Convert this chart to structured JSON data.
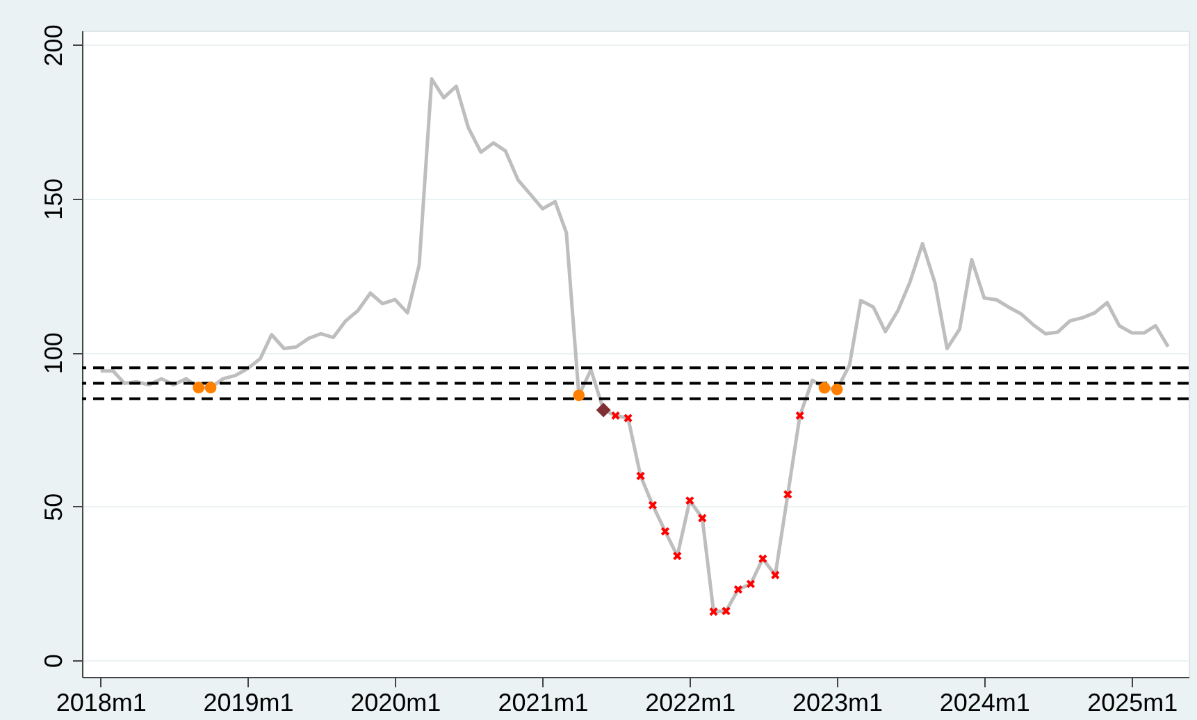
{
  "chart_data": {
    "type": "line",
    "x": [
      "2018-01",
      "2018-02",
      "2018-03",
      "2018-04",
      "2018-05",
      "2018-06",
      "2018-07",
      "2018-08",
      "2018-09",
      "2018-10",
      "2018-11",
      "2018-12",
      "2019-01",
      "2019-02",
      "2019-03",
      "2019-04",
      "2019-05",
      "2019-06",
      "2019-07",
      "2019-08",
      "2019-09",
      "2019-10",
      "2019-11",
      "2019-12",
      "2020-01",
      "2020-02",
      "2020-03",
      "2020-04",
      "2020-05",
      "2020-06",
      "2020-07",
      "2020-08",
      "2020-09",
      "2020-10",
      "2020-11",
      "2020-12",
      "2021-01",
      "2021-02",
      "2021-03",
      "2021-04",
      "2021-05",
      "2021-06",
      "2021-07",
      "2021-08",
      "2021-09",
      "2021-10",
      "2021-11",
      "2021-12",
      "2022-01",
      "2022-02",
      "2022-03",
      "2022-04",
      "2022-05",
      "2022-06",
      "2022-07",
      "2022-08",
      "2022-09",
      "2022-10",
      "2022-11",
      "2022-12",
      "2023-01",
      "2023-02",
      "2023-03",
      "2023-04",
      "2023-05",
      "2023-06",
      "2023-07",
      "2023-08",
      "2023-09",
      "2023-10",
      "2023-11",
      "2023-12",
      "2024-01",
      "2024-02",
      "2024-03",
      "2024-04",
      "2024-05",
      "2024-06",
      "2024-07",
      "2024-08",
      "2024-09",
      "2024-10",
      "2024-11",
      "2024-12",
      "2025-01",
      "2025-02",
      "2025-03",
      "2025-04"
    ],
    "series": [
      {
        "type": "line",
        "color": "#bebebe",
        "marker": "none",
        "values": [
          94,
          94,
          90,
          90.5,
          89.5,
          91.5,
          89.5,
          91.5,
          88.6,
          88.6,
          91.5,
          92.5,
          94.8,
          98,
          105.8,
          101.3,
          101.8,
          104.6,
          106.1,
          104.9,
          110.3,
          113.6,
          119.3,
          115.9,
          117.2,
          112.9,
          128.4,
          188.9,
          182.8,
          186.5,
          173,
          165.1,
          168.1,
          165.5,
          156.1,
          151.5,
          146.7,
          149,
          138.9,
          86.1,
          94.4,
          81.3,
          79.5,
          78.7,
          59.9,
          50.4,
          41.9,
          33.9,
          51.9,
          46.2,
          15.8,
          16,
          23,
          24.8,
          33,
          27.7,
          53.9,
          79.5,
          91,
          88.5,
          88,
          95.9,
          116.9,
          114.8,
          106.8,
          113.6,
          122.9,
          135.4,
          122.6,
          101.3,
          107.6,
          130.2,
          117.7,
          117.1,
          114.8,
          112.6,
          109.1,
          106.1,
          106.6,
          110.3,
          111.3,
          112.9,
          116.2,
          108.7,
          106.4,
          106.4,
          108.7,
          101.9
        ]
      },
      {
        "type": "scatter",
        "color": "#ff8000",
        "marker": "circle",
        "x": [
          "2018-09",
          "2018-10",
          "2021-04",
          "2022-12",
          "2023-01"
        ],
        "values": [
          88.6,
          88.6,
          86.1,
          88.5,
          88
        ]
      },
      {
        "type": "scatter",
        "color": "#7f2e33",
        "marker": "diamond",
        "x": [
          "2021-06"
        ],
        "values": [
          81.3
        ]
      },
      {
        "type": "scatter",
        "color": "#ff0000",
        "marker": "cross",
        "x": [
          "2021-07",
          "2021-08",
          "2021-09",
          "2021-10",
          "2021-11",
          "2021-12",
          "2022-01",
          "2022-02",
          "2022-03",
          "2022-04",
          "2022-05",
          "2022-06",
          "2022-07",
          "2022-08",
          "2022-09",
          "2022-10"
        ],
        "values": [
          79.5,
          78.7,
          59.9,
          50.4,
          41.9,
          33.9,
          51.9,
          46.2,
          15.8,
          16,
          23,
          24.8,
          33,
          27.7,
          53.9,
          79.5
        ]
      }
    ],
    "xlim": [
      "2017-11-16",
      "2025-05-22"
    ],
    "xticks": [
      {
        "value": "2018-01",
        "label": "2018m1"
      },
      {
        "value": "2019-01",
        "label": "2019m1"
      },
      {
        "value": "2020-01",
        "label": "2020m1"
      },
      {
        "value": "2021-01",
        "label": "2021m1"
      },
      {
        "value": "2022-01",
        "label": "2022m1"
      },
      {
        "value": "2023-01",
        "label": "2023m1"
      },
      {
        "value": "2024-01",
        "label": "2024m1"
      },
      {
        "value": "2025-01",
        "label": "2025m1"
      }
    ],
    "ylim": [
      -5.4,
      204.6
    ],
    "yticks": [
      0,
      50,
      100,
      150,
      200
    ],
    "grid": "y",
    "ref_lines": [
      {
        "axis": "y",
        "value": 95,
        "color": "#000000",
        "line_style": "dashed"
      },
      {
        "axis": "y",
        "value": 90,
        "color": "#000000",
        "line_style": "dashed"
      },
      {
        "axis": "y",
        "value": 85,
        "color": "#000000",
        "line_style": "dashed"
      }
    ]
  }
}
